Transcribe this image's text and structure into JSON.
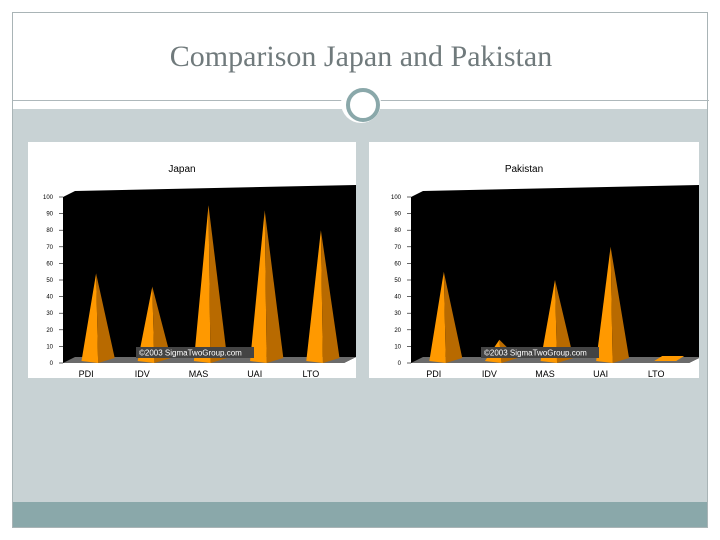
{
  "slide": {
    "title": "Comparison Japan and Pakistan"
  },
  "colors": {
    "accent": "#8aa8aa",
    "band": "#c8d2d4",
    "plot_bg": "#000000",
    "cone_light": "#ff9900",
    "cone_dark": "#b86a00"
  },
  "chart_data": [
    {
      "type": "bar",
      "title": "Japan",
      "categories": [
        "PDI",
        "IDV",
        "MAS",
        "UAI",
        "LTO"
      ],
      "values": [
        54,
        46,
        95,
        92,
        80
      ],
      "ylim": [
        0,
        100
      ],
      "yticks": [
        "0",
        "10",
        "20",
        "30",
        "40",
        "50",
        "60",
        "70",
        "80",
        "90",
        "100"
      ],
      "watermark": "©2003 SigmaTwoGroup.com"
    },
    {
      "type": "bar",
      "title": "Pakistan",
      "categories": [
        "PDI",
        "IDV",
        "MAS",
        "UAI",
        "LTO"
      ],
      "values": [
        55,
        14,
        50,
        70,
        0
      ],
      "ylim": [
        0,
        100
      ],
      "yticks": [
        "0",
        "10",
        "20",
        "30",
        "40",
        "50",
        "60",
        "70",
        "80",
        "90",
        "100"
      ],
      "watermark": "©2003 SigmaTwoGroup.com"
    }
  ]
}
